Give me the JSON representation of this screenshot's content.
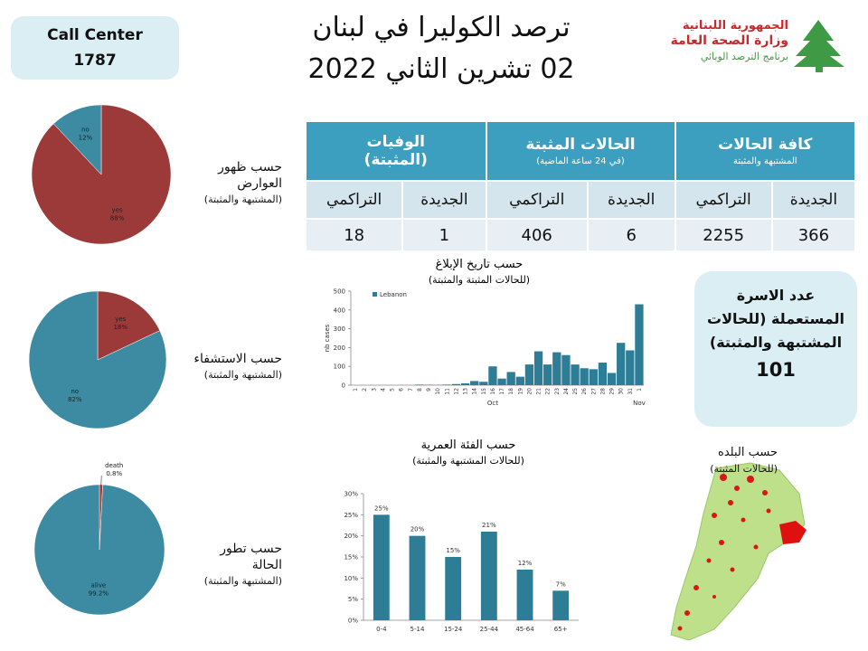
{
  "header": {
    "title": "ترصد الكوليرا في لبنان",
    "date": "02 تشرين الثاني 2022"
  },
  "logo": {
    "line1": "الجمهورية اللبنانية",
    "line2": "وزارة الصحة العامة",
    "line3": "برنامج الترصد الوبائي"
  },
  "call_center": {
    "label": "Call Center",
    "number": "1787"
  },
  "table": {
    "groups": [
      {
        "title": "كافة الحالات",
        "subtitle": "المشتبهة والمثبتة"
      },
      {
        "title": "الحالات المثبتة",
        "subtitle": "(في 24 ساعة الماضية)"
      },
      {
        "title": "الوفيات",
        "subtitle": "(المثبتة)"
      }
    ],
    "columns": [
      "الجديدة",
      "التراكمي",
      "الجديدة",
      "التراكمي",
      "الجديدة",
      "التراكمي"
    ],
    "values": [
      366,
      2255,
      6,
      406,
      1,
      18
    ]
  },
  "households": {
    "label": "عدد الاسرة المستعملة (للحالات المشتبهة والمثبتة)",
    "value": 101
  },
  "map": {
    "title": "حسب البلده",
    "subtitle": "(للحالات المثبتة)"
  },
  "chart_data": [
    {
      "type": "pie",
      "title": "حسب ظهور العوارض",
      "subtitle": "(المشتبهة والمثبتة)",
      "categories": [
        "yes",
        "no"
      ],
      "values": [
        88,
        12
      ],
      "value_labels": [
        "88%",
        "12%"
      ],
      "colors": [
        "#9c3a3a",
        "#3d8aa3"
      ]
    },
    {
      "type": "pie",
      "title": "حسب الاستشفاء",
      "subtitle": "(المشتبهة والمثبتة)",
      "categories": [
        "yes",
        "no"
      ],
      "values": [
        18,
        82
      ],
      "value_labels": [
        "18%",
        "82%"
      ],
      "colors": [
        "#9c3a3a",
        "#3d8aa3"
      ]
    },
    {
      "type": "pie",
      "title": "حسب تطور الحالة",
      "subtitle": "(المشتبهة والمثبتة)",
      "categories": [
        "death",
        "alive"
      ],
      "values": [
        0.8,
        99.2
      ],
      "value_labels": [
        "0.8%",
        "99.2%"
      ],
      "colors": [
        "#9c3a3a",
        "#3d8aa3"
      ]
    },
    {
      "type": "bar",
      "title": "حسب تاريخ الإبلاغ",
      "subtitle": "(للحالات المثبتة والمثبتة)",
      "y_label": "nb cases",
      "categories": [
        "1",
        "2",
        "3",
        "4",
        "5",
        "6",
        "7",
        "8",
        "9",
        "10",
        "11",
        "12",
        "13",
        "14",
        "15",
        "16",
        "17",
        "18",
        "19",
        "20",
        "21",
        "22",
        "23",
        "24",
        "25",
        "26",
        "27",
        "28",
        "29",
        "30",
        "31",
        "1"
      ],
      "month_labels": [
        "Oct",
        "Nov"
      ],
      "series": [
        {
          "name": "Lebanon",
          "color": "#2e7d96",
          "values": [
            0,
            0,
            0,
            0,
            0,
            0,
            0,
            3,
            2,
            1,
            3,
            6,
            10,
            22,
            18,
            100,
            35,
            70,
            45,
            110,
            180,
            110,
            175,
            160,
            110,
            90,
            85,
            120,
            65,
            225,
            185,
            430
          ]
        }
      ],
      "ylim": [
        0,
        500
      ],
      "yticks": [
        0,
        100,
        200,
        300,
        400,
        500
      ]
    },
    {
      "type": "bar",
      "title": "حسب الفئة العمرية",
      "subtitle": "(للحالات المشتبهة والمثبتة)",
      "categories": [
        "0-4",
        "5-14",
        "15-24",
        "25-44",
        "45-64",
        "65+"
      ],
      "values": [
        25,
        20,
        15,
        21,
        12,
        7
      ],
      "value_labels": [
        "25%",
        "20%",
        "15%",
        "21%",
        "12%",
        "7%"
      ],
      "color": "#2e7d96",
      "ylim": [
        0,
        30
      ],
      "yticks": [
        {
          "value": 0,
          "label": "0%"
        },
        {
          "value": 5,
          "label": "5%"
        },
        {
          "value": 10,
          "label": "10%"
        },
        {
          "value": 15,
          "label": "15%"
        },
        {
          "value": 20,
          "label": "20%"
        },
        {
          "value": 25,
          "label": "25%"
        },
        {
          "value": 30,
          "label": "30%"
        }
      ]
    }
  ]
}
